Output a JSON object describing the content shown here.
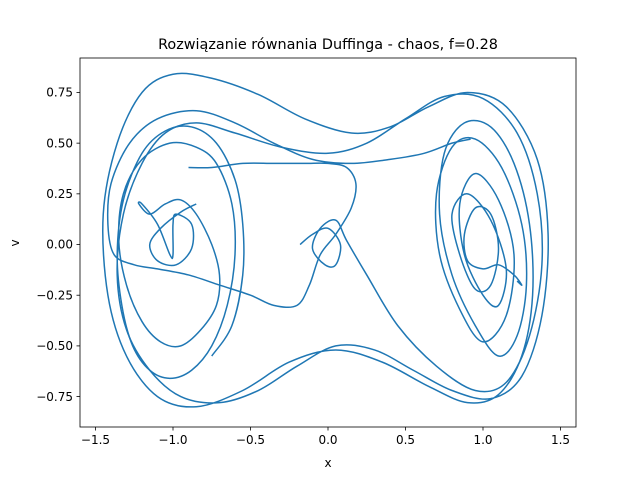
{
  "chart_data": {
    "type": "line",
    "title": "Rozwiązanie równania Duffinga - chaos, f=0.28",
    "xlabel": "x",
    "ylabel": "v",
    "xlim": [
      -1.6,
      1.6
    ],
    "ylim": [
      -0.9,
      0.92
    ],
    "x_ticks": [
      -1.5,
      -1.0,
      -0.5,
      0.0,
      0.5,
      1.0,
      1.5
    ],
    "x_tick_labels": [
      "−1.5",
      "−1.0",
      "−0.5",
      "0.0",
      "0.5",
      "1.0",
      "1.5"
    ],
    "y_ticks": [
      -0.75,
      -0.5,
      -0.25,
      0.0,
      0.25,
      0.5,
      0.75
    ],
    "y_tick_labels": [
      "−0.75",
      "−0.50",
      "−0.25",
      "0.00",
      "0.25",
      "0.50",
      "0.75"
    ],
    "grid": false,
    "line_color": "#1f77b4",
    "series": [
      {
        "x": [
          -0.18,
          -0.1,
          0.0,
          0.08,
          0.05,
          -0.02,
          -0.1,
          -0.05,
          0.05,
          0.12,
          0.25,
          0.45,
          0.7,
          0.95,
          1.15,
          1.3,
          1.38,
          1.35,
          1.22,
          1.0,
          0.75,
          0.5,
          0.25,
          0.0,
          -0.3,
          -0.6,
          -0.85,
          -1.05,
          -1.2,
          -1.32,
          -1.36,
          -1.3,
          -1.15,
          -0.95,
          -0.7,
          -0.45,
          -0.2,
          0.05,
          0.3,
          0.55,
          0.8,
          1.05,
          1.25,
          1.38,
          1.42,
          1.35,
          1.15,
          0.9,
          0.65,
          0.4,
          0.15,
          -0.15,
          -0.45,
          -0.75,
          -1.0,
          -1.2,
          -1.36,
          -1.45,
          -1.42,
          -1.3,
          -1.1,
          -0.85,
          -0.55,
          -0.25,
          0.05,
          0.35,
          0.65,
          0.9,
          1.1,
          1.25,
          1.32,
          1.3,
          1.2,
          1.05,
          0.88,
          0.75,
          0.72,
          0.8,
          0.95,
          1.1,
          1.22,
          1.28,
          1.25,
          1.12,
          0.95,
          0.8,
          0.7,
          0.72,
          0.85,
          1.0,
          1.15,
          1.2,
          1.1,
          0.95,
          0.85,
          0.88,
          1.0,
          1.1,
          1.15,
          1.05,
          0.9,
          0.8,
          0.85,
          0.95,
          1.05,
          1.1,
          1.05,
          0.95,
          0.88,
          0.9,
          1.0,
          1.1,
          1.2,
          1.25,
          1.22
        ],
        "y": [
          0.0,
          0.05,
          0.08,
          0.0,
          -0.1,
          -0.1,
          -0.02,
          0.08,
          0.12,
          0.02,
          -0.15,
          -0.4,
          -0.6,
          -0.72,
          -0.68,
          -0.45,
          -0.1,
          0.25,
          0.55,
          0.72,
          0.73,
          0.62,
          0.5,
          0.45,
          0.48,
          0.55,
          0.6,
          0.55,
          0.4,
          0.15,
          -0.15,
          -0.42,
          -0.62,
          -0.75,
          -0.78,
          -0.72,
          -0.6,
          -0.5,
          -0.52,
          -0.62,
          -0.72,
          -0.76,
          -0.65,
          -0.35,
          0.05,
          0.42,
          0.68,
          0.75,
          0.68,
          0.58,
          0.55,
          0.62,
          0.74,
          0.82,
          0.84,
          0.75,
          0.5,
          0.15,
          -0.25,
          -0.55,
          -0.75,
          -0.8,
          -0.72,
          -0.58,
          -0.52,
          -0.58,
          -0.7,
          -0.78,
          -0.74,
          -0.55,
          -0.25,
          0.1,
          0.4,
          0.58,
          0.6,
          0.45,
          0.15,
          -0.15,
          -0.4,
          -0.55,
          -0.45,
          -0.2,
          0.1,
          0.38,
          0.52,
          0.48,
          0.25,
          -0.05,
          -0.32,
          -0.48,
          -0.35,
          -0.05,
          0.22,
          0.35,
          0.2,
          -0.05,
          -0.25,
          -0.3,
          -0.12,
          0.12,
          0.25,
          0.15,
          -0.05,
          -0.22,
          -0.2,
          -0.02,
          0.15,
          0.18,
          0.05,
          -0.08,
          -0.12,
          -0.1,
          -0.15,
          -0.2,
          -0.18
        ]
      },
      {
        "x": [
          -0.85,
          -0.95,
          -1.08,
          -1.15,
          -1.1,
          -0.98,
          -0.88,
          -0.88,
          -0.98,
          -1.0,
          -1.0,
          -1.02,
          -1.1,
          -1.2,
          -1.22,
          -1.15,
          -1.05,
          -0.95,
          -0.85,
          -0.75,
          -0.7,
          -0.72,
          -0.82,
          -0.95,
          -1.08,
          -1.2,
          -1.3,
          -1.35,
          -1.32,
          -1.2,
          -1.02,
          -0.85,
          -0.72,
          -0.62,
          -0.6,
          -0.65,
          -0.75,
          -0.88,
          -1.02,
          -1.15,
          -1.26,
          -1.33,
          -1.36,
          -1.32,
          -1.2,
          -1.05,
          -0.88,
          -0.72,
          -0.6,
          -0.55,
          -0.55,
          -0.62,
          -0.75
        ],
        "y": [
          0.2,
          0.16,
          0.08,
          0.0,
          -0.08,
          -0.1,
          -0.02,
          0.1,
          0.15,
          0.1,
          -0.05,
          -0.05,
          0.1,
          0.2,
          0.2,
          0.15,
          0.2,
          0.22,
          0.15,
          0.0,
          -0.15,
          -0.3,
          -0.42,
          -0.5,
          -0.48,
          -0.38,
          -0.2,
          0.02,
          0.25,
          0.42,
          0.5,
          0.48,
          0.4,
          0.2,
          -0.05,
          -0.3,
          -0.5,
          -0.62,
          -0.66,
          -0.62,
          -0.5,
          -0.3,
          -0.05,
          0.22,
          0.45,
          0.56,
          0.58,
          0.5,
          0.32,
          0.1,
          -0.15,
          -0.4,
          -0.55
        ]
      },
      {
        "x": [
          -0.9,
          -0.75,
          -0.55,
          -0.35,
          -0.15,
          0.0,
          0.12,
          0.18,
          0.15,
          0.05,
          -0.05,
          -0.12,
          -0.2,
          -0.35,
          -0.5,
          -0.7,
          -0.9,
          -1.1,
          -1.25,
          -1.38,
          -1.42,
          -1.4,
          -1.28,
          -1.1,
          -0.85,
          -0.6,
          -0.35,
          -0.1,
          0.15,
          0.4,
          0.62,
          0.8,
          0.92
        ],
        "y": [
          0.38,
          0.38,
          0.4,
          0.4,
          0.4,
          0.4,
          0.38,
          0.3,
          0.18,
          0.05,
          -0.05,
          -0.2,
          -0.3,
          -0.3,
          -0.25,
          -0.2,
          -0.15,
          -0.12,
          -0.1,
          -0.05,
          0.1,
          0.3,
          0.5,
          0.62,
          0.66,
          0.6,
          0.5,
          0.42,
          0.4,
          0.42,
          0.45,
          0.5,
          0.52
        ]
      }
    ]
  }
}
